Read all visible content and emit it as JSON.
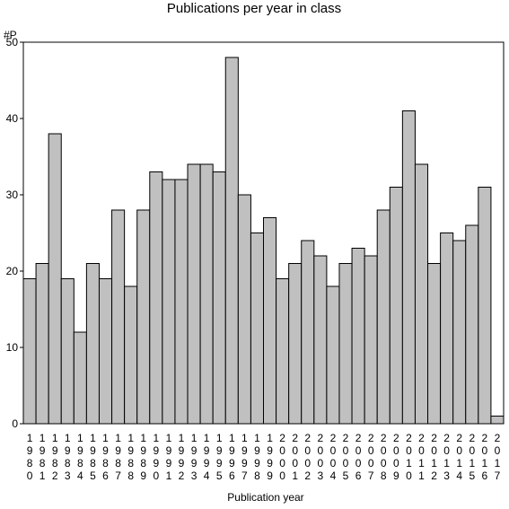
{
  "chart_data": {
    "type": "bar",
    "title": "Publications per year in class",
    "xlabel": "Publication year",
    "ylabel": "#P",
    "ylim": [
      0,
      50
    ],
    "yticks": [
      0,
      10,
      20,
      30,
      40,
      50
    ],
    "grid": false,
    "legend": "none",
    "bar_color": "#c0c0c0",
    "categories": [
      "1980",
      "1981",
      "1982",
      "1983",
      "1984",
      "1985",
      "1986",
      "1987",
      "1988",
      "1989",
      "1990",
      "1991",
      "1992",
      "1993",
      "1994",
      "1995",
      "1996",
      "1997",
      "1998",
      "1999",
      "2000",
      "2001",
      "2002",
      "2003",
      "2004",
      "2005",
      "2006",
      "2007",
      "2008",
      "2009",
      "2010",
      "2011",
      "2012",
      "2013",
      "2014",
      "2015",
      "2016",
      "2017"
    ],
    "values": [
      19,
      21,
      38,
      19,
      12,
      21,
      19,
      28,
      18,
      28,
      33,
      32,
      32,
      34,
      34,
      33,
      48,
      30,
      25,
      27,
      19,
      21,
      24,
      22,
      18,
      21,
      23,
      22,
      28,
      31,
      41,
      34,
      21,
      25,
      24,
      26,
      31,
      1
    ]
  }
}
